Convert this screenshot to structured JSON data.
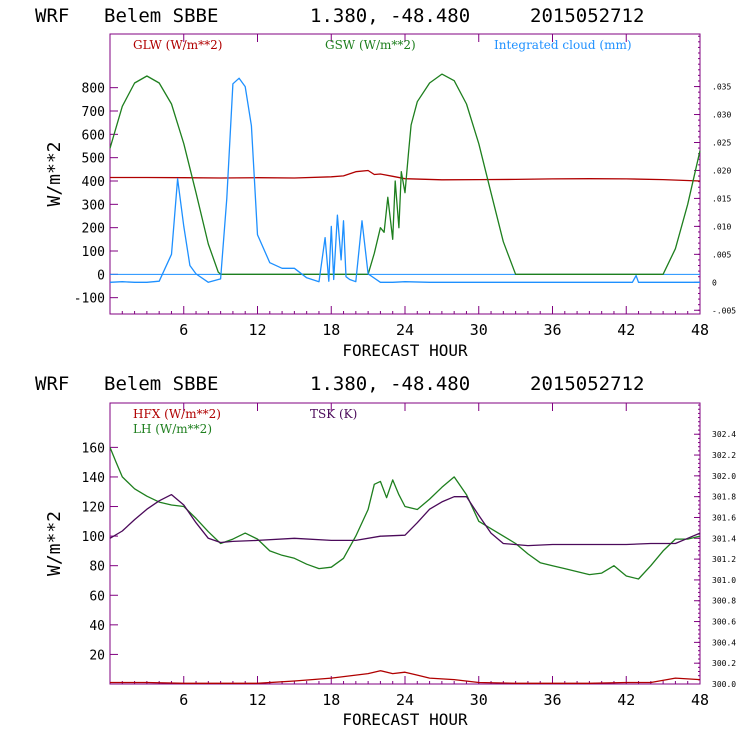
{
  "colors": {
    "background": "#ffffff",
    "axis": "#800080",
    "red": "#b00000",
    "green": "#1e7f1e",
    "blue": "#1e90ff",
    "purple": "#4b0a5a",
    "text": "#000000"
  },
  "chart_data": [
    {
      "type": "line",
      "header": {
        "model": "WRF",
        "station": "Belem SBBE",
        "coords": "1.380, -48.480",
        "init": "2015052712"
      },
      "xlabel": "FORECAST HOUR",
      "ylabel": "W/m**2",
      "xlim": [
        0,
        48
      ],
      "ylim": [
        -170,
        1030
      ],
      "x_ticks": [
        6,
        12,
        18,
        24,
        30,
        36,
        42,
        48
      ],
      "y_ticks": [
        -100,
        0,
        100,
        200,
        300,
        400,
        500,
        600,
        700,
        800
      ],
      "right_axis": {
        "lim": [
          -0.00567,
          0.0444
        ],
        "ticks": [
          -0.005,
          0,
          0.005,
          0.01,
          0.015,
          0.02,
          0.025,
          0.03,
          0.035
        ],
        "tick_labels": [
          "-.005",
          "0",
          ".005",
          ".010",
          ".015",
          ".020",
          ".025",
          ".030",
          ".035"
        ]
      },
      "legend": [
        "GLW (W/m**2)",
        "GSW (W/m**2)",
        "Integrated cloud (mm)"
      ],
      "series": [
        {
          "name": "GLW (W/m**2)",
          "color_key": "red",
          "axis": "left",
          "x": [
            0,
            3,
            6,
            9,
            12,
            15,
            18,
            19,
            20,
            21,
            21.5,
            22,
            23,
            24,
            27,
            30,
            33,
            36,
            39,
            42,
            45,
            48
          ],
          "values": [
            415,
            415,
            414,
            413,
            414,
            413,
            418,
            422,
            440,
            445,
            428,
            430,
            420,
            410,
            405,
            406,
            407,
            409,
            410,
            409,
            406,
            400
          ]
        },
        {
          "name": "GSW (W/m**2)",
          "color_key": "green",
          "axis": "left",
          "x": [
            0,
            1,
            2,
            3,
            4,
            5,
            6,
            7,
            8,
            8.8,
            9,
            12,
            15,
            18,
            21,
            21.5,
            22,
            22.3,
            22.6,
            23,
            23.2,
            23.5,
            23.7,
            24,
            24.3,
            24.5,
            25,
            26,
            27,
            28,
            29,
            30,
            31,
            32,
            33,
            36,
            39,
            42,
            45,
            46,
            47,
            48
          ],
          "values": [
            540,
            720,
            820,
            850,
            820,
            730,
            560,
            350,
            130,
            10,
            0,
            0,
            0,
            0,
            0,
            90,
            200,
            180,
            330,
            150,
            400,
            200,
            440,
            350,
            530,
            640,
            740,
            820,
            858,
            830,
            730,
            560,
            350,
            140,
            0,
            0,
            0,
            0,
            0,
            110,
            300,
            530
          ]
        },
        {
          "name": "Integrated cloud (mm)",
          "color_key": "blue",
          "axis": "right",
          "x": [
            0,
            1,
            2,
            3,
            4,
            5,
            5.5,
            6,
            6.5,
            7,
            8,
            9,
            9.5,
            10,
            10.5,
            11,
            11.5,
            12,
            13,
            14,
            15,
            16,
            17,
            17.5,
            17.8,
            18,
            18.2,
            18.5,
            18.8,
            19,
            19.2,
            19.5,
            20,
            20.5,
            21,
            22,
            23,
            24,
            26,
            30,
            35,
            40,
            42.5,
            42.8,
            43,
            44,
            46,
            48
          ],
          "values": [
            0,
            0.0001,
            0,
            0,
            0.0002,
            0.005,
            0.0185,
            0.01,
            0.003,
            0.0015,
            0,
            0.0006,
            0.015,
            0.0355,
            0.0365,
            0.035,
            0.028,
            0.0085,
            0.0035,
            0.0025,
            0.0025,
            0.0008,
            0.0001,
            0.008,
            0.0002,
            0.01,
            0.0005,
            0.012,
            0.004,
            0.011,
            0.001,
            0.0005,
            0.0001,
            0.011,
            0.0015,
            0,
            0,
            0.0001,
            0,
            0,
            0,
            0,
            0,
            0.0012,
            0,
            0,
            0,
            0
          ]
        }
      ]
    },
    {
      "type": "line",
      "header": {
        "model": "WRF",
        "station": "Belem SBBE",
        "coords": "1.380, -48.480",
        "init": "2015052712"
      },
      "xlabel": "FORECAST HOUR",
      "ylabel": "W/m**2",
      "xlim": [
        0,
        48
      ],
      "ylim": [
        0,
        190
      ],
      "x_ticks": [
        6,
        12,
        18,
        24,
        30,
        36,
        42,
        48
      ],
      "y_ticks": [
        20,
        40,
        60,
        80,
        100,
        120,
        140,
        160
      ],
      "right_axis": {
        "lim": [
          300.0,
          302.7
        ],
        "ticks": [
          300.0,
          300.2,
          300.4,
          300.6,
          300.8,
          301.0,
          301.2,
          301.4,
          301.6,
          301.8,
          302.0,
          302.2,
          302.4
        ],
        "tick_labels": [
          "300.0",
          "300.2",
          "300.4",
          "300.6",
          "300.8",
          "301.0",
          "301.2",
          "301.4",
          "301.6",
          "301.8",
          "302.0",
          "302.2",
          "302.4"
        ]
      },
      "legend": [
        "HFX (W/m**2)",
        "LH (W/m**2)",
        "TSK (K)"
      ],
      "series": [
        {
          "name": "HFX (W/m**2)",
          "color_key": "red",
          "axis": "left",
          "x": [
            0,
            3,
            6,
            9,
            12,
            15,
            18,
            20,
            21,
            22,
            23,
            24,
            25,
            26,
            28,
            30,
            33,
            36,
            39,
            42,
            44,
            46,
            48
          ],
          "values": [
            1,
            1,
            0.5,
            0.5,
            0.5,
            2,
            4,
            6,
            7,
            9,
            7,
            8,
            6,
            4,
            3,
            1,
            0.5,
            0.5,
            0.5,
            1,
            1,
            4,
            3
          ]
        },
        {
          "name": "LH (W/m**2)",
          "color_key": "green",
          "axis": "left",
          "x": [
            0,
            0.5,
            1,
            2,
            3,
            4,
            5,
            6,
            7,
            8,
            9,
            10,
            11,
            12,
            13,
            14,
            15,
            16,
            17,
            18,
            19,
            20,
            21,
            21.5,
            22,
            22.5,
            23,
            23.5,
            24,
            25,
            26,
            27,
            28,
            29,
            30,
            31,
            32,
            33,
            34,
            35,
            36,
            37,
            38,
            39,
            40,
            41,
            42,
            43,
            44,
            45,
            46,
            47,
            48
          ],
          "values": [
            160,
            150,
            140,
            132,
            127,
            123,
            121,
            120,
            112,
            103,
            95,
            98,
            102,
            98,
            90,
            87,
            85,
            81,
            78,
            79,
            85,
            100,
            118,
            135,
            137,
            126,
            138,
            128,
            120,
            118,
            125,
            133,
            140,
            128,
            110,
            105,
            100,
            95,
            88,
            82,
            80,
            78,
            76,
            74,
            75,
            80,
            73,
            71,
            80,
            90,
            98,
            98,
            100
          ]
        },
        {
          "name": "TSK (K)",
          "color_key": "purple",
          "axis": "right",
          "x": [
            0,
            1,
            2,
            3,
            4,
            5,
            6,
            7,
            8,
            9,
            10,
            12,
            15,
            18,
            20,
            22,
            24,
            25,
            26,
            27,
            28,
            29,
            30,
            31,
            32,
            34,
            36,
            38,
            40,
            42,
            44,
            46,
            47,
            48
          ],
          "values": [
            301.4,
            301.47,
            301.58,
            301.68,
            301.76,
            301.82,
            301.72,
            301.55,
            301.4,
            301.36,
            301.37,
            301.38,
            301.4,
            301.38,
            301.38,
            301.42,
            301.43,
            301.55,
            301.68,
            301.75,
            301.8,
            301.8,
            301.62,
            301.45,
            301.35,
            301.33,
            301.34,
            301.34,
            301.34,
            301.34,
            301.35,
            301.35,
            301.4,
            301.45
          ]
        }
      ]
    }
  ]
}
